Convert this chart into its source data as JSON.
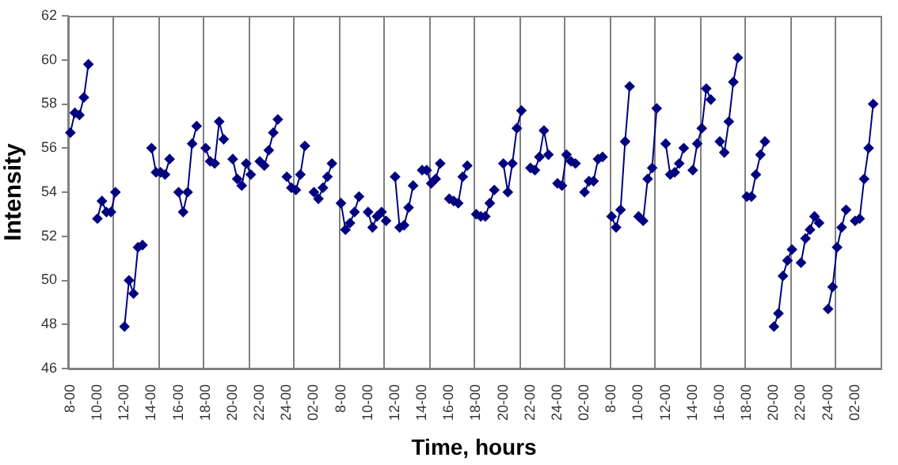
{
  "chart_data": {
    "type": "line",
    "xlabel": "Time, hours",
    "ylabel": "Intensity",
    "ylim": [
      46,
      62
    ],
    "yticks": [
      46,
      48,
      50,
      52,
      54,
      56,
      58,
      60,
      62
    ],
    "categories": [
      "8-00",
      null,
      null,
      null,
      null,
      null,
      "10-00",
      null,
      null,
      null,
      null,
      null,
      "12-00",
      null,
      null,
      null,
      null,
      null,
      "14-00",
      null,
      null,
      null,
      null,
      null,
      "16-00",
      null,
      null,
      null,
      null,
      null,
      "18-00",
      null,
      null,
      null,
      null,
      null,
      "20-00",
      null,
      null,
      null,
      null,
      null,
      "22-00",
      null,
      null,
      null,
      null,
      null,
      "24-00",
      null,
      null,
      null,
      null,
      null,
      "02-00",
      null,
      null,
      null,
      null,
      null,
      "8-00",
      null,
      null,
      null,
      null,
      null,
      "10-00",
      null,
      null,
      null,
      null,
      null,
      "12-00",
      null,
      null,
      null,
      null,
      null,
      "14-00",
      null,
      null,
      null,
      null,
      null,
      "16-00",
      null,
      null,
      null,
      null,
      null,
      "18-00",
      null,
      null,
      null,
      null,
      null,
      "20-00",
      null,
      null,
      null,
      null,
      null,
      "22-00",
      null,
      null,
      null,
      null,
      null,
      "24-00",
      null,
      null,
      null,
      null,
      null,
      "02-00",
      null,
      null,
      null,
      null,
      null,
      "8-00",
      null,
      null,
      null,
      null,
      null,
      "10-00",
      null,
      null,
      null,
      null,
      null,
      "12-00",
      null,
      null,
      null,
      null,
      null,
      "14-00",
      null,
      null,
      null,
      null,
      null,
      "16-00",
      null,
      null,
      null,
      null,
      null,
      "18-00",
      null,
      null,
      null,
      null,
      null,
      "20-00",
      null,
      null,
      null,
      null,
      null,
      "22-00",
      null,
      null,
      null,
      null,
      null,
      "24-00",
      null,
      null,
      null,
      null,
      null,
      "02-00",
      null,
      null,
      null,
      null,
      null
    ],
    "grid": false,
    "legend": false,
    "marker": "diamond",
    "line_style": "solid",
    "series": [
      {
        "color": "#000080",
        "values": [
          56.7,
          57.6,
          57.5,
          58.3,
          59.8,
          null,
          52.8,
          53.6,
          53.1,
          53.1,
          54.0,
          null,
          47.9,
          50.0,
          49.4,
          51.5,
          51.6,
          null,
          56.0,
          54.9,
          54.9,
          54.8,
          55.5,
          null,
          54.0,
          53.1,
          54.0,
          56.2,
          57.0,
          null,
          56.0,
          55.4,
          55.3,
          57.2,
          56.4,
          null,
          55.5,
          54.6,
          54.3,
          55.3,
          54.8,
          null,
          55.4,
          55.2,
          55.9,
          56.7,
          57.3,
          null,
          54.7,
          54.2,
          54.1,
          54.8,
          56.1,
          null,
          54.0,
          53.7,
          54.2,
          54.7,
          55.3,
          null,
          53.5,
          52.3,
          52.6,
          53.1,
          53.8,
          null,
          53.1,
          52.4,
          52.9,
          53.1,
          52.7,
          null,
          54.7,
          52.4,
          52.5,
          53.3,
          54.3,
          null,
          55.0,
          55.0,
          54.4,
          54.6,
          55.3,
          null,
          53.7,
          53.6,
          53.5,
          54.7,
          55.2,
          null,
          53.0,
          52.9,
          52.9,
          53.5,
          54.1,
          null,
          55.3,
          54.0,
          55.3,
          56.9,
          57.7,
          null,
          55.1,
          55.0,
          55.6,
          56.8,
          55.7,
          null,
          54.4,
          54.3,
          55.7,
          55.4,
          55.3,
          null,
          54.0,
          54.5,
          54.5,
          55.5,
          55.6,
          null,
          52.9,
          52.4,
          53.2,
          56.3,
          58.8,
          null,
          52.9,
          52.7,
          54.6,
          55.1,
          57.8,
          null,
          56.2,
          54.8,
          54.9,
          55.3,
          56.0,
          null,
          55.0,
          56.2,
          56.9,
          58.7,
          58.2,
          null,
          56.3,
          55.8,
          57.2,
          59.0,
          60.1,
          null,
          53.8,
          53.8,
          54.8,
          55.7,
          56.3,
          null,
          47.9,
          48.5,
          50.2,
          50.9,
          51.4,
          null,
          50.8,
          51.9,
          52.3,
          52.9,
          52.6,
          null,
          48.7,
          49.7,
          51.5,
          52.4,
          53.2,
          null,
          52.7,
          52.8,
          54.6,
          56.0,
          58.0,
          null
        ]
      }
    ]
  }
}
